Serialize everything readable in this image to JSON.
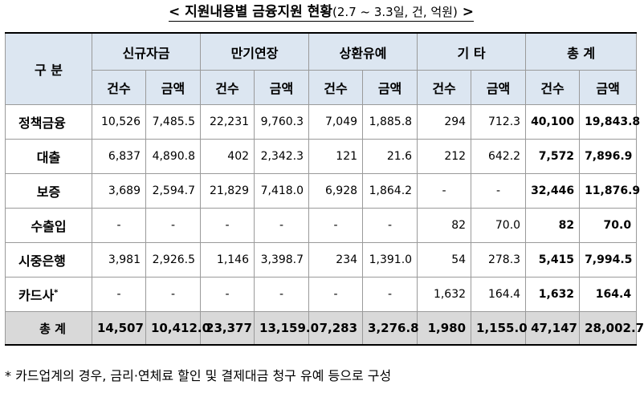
{
  "title": {
    "main": "< 지원내용별 금융지원 현황",
    "sub": "(2.7 ~ 3.3일, 건, 억원)",
    "close": " >"
  },
  "header": {
    "category": "구 분",
    "groups": [
      "신규자금",
      "만기연장",
      "상환유예",
      "기 타",
      "총 계"
    ],
    "count_label": "건수",
    "amount_label": "금액"
  },
  "rows": [
    {
      "label": "정책금융",
      "values": [
        "10,526",
        "7,485.5",
        "22,231",
        "9,760.3",
        "7,049",
        "1,885.8",
        "294",
        "712.3",
        "40,100",
        "19,843.8"
      ]
    },
    {
      "label": "대출",
      "values": [
        "6,837",
        "4,890.8",
        "402",
        "2,342.3",
        "121",
        "21.6",
        "212",
        "642.2",
        "7,572",
        "7,896.9"
      ]
    },
    {
      "label": "보증",
      "values": [
        "3,689",
        "2,594.7",
        "21,829",
        "7,418.0",
        "6,928",
        "1,864.2",
        "-",
        "-",
        "32,446",
        "11,876.9"
      ]
    },
    {
      "label": "수출입",
      "values": [
        "-",
        "-",
        "-",
        "-",
        "-",
        "-",
        "82",
        "70.0",
        "82",
        "70.0"
      ]
    },
    {
      "label": "시중은행",
      "values": [
        "3,981",
        "2,926.5",
        "1,146",
        "3,398.7",
        "234",
        "1,391.0",
        "54",
        "278.3",
        "5,415",
        "7,994.5"
      ]
    },
    {
      "label": "카드사",
      "label_sup": "*",
      "values": [
        "-",
        "-",
        "-",
        "-",
        "-",
        "-",
        "1,632",
        "164.4",
        "1,632",
        "164.4"
      ]
    },
    {
      "label": "총 계",
      "values": [
        "14,507",
        "10,412.0",
        "23,377",
        "13,159.0",
        "7,283",
        "3,276.8",
        "1,980",
        "1,155.0",
        "47,147",
        "28,002.7"
      ]
    }
  ],
  "footnote": "* 카드업계의 경우, 금리·연체료 할인 및 결제대금 청구 유예 등으로 구성"
}
